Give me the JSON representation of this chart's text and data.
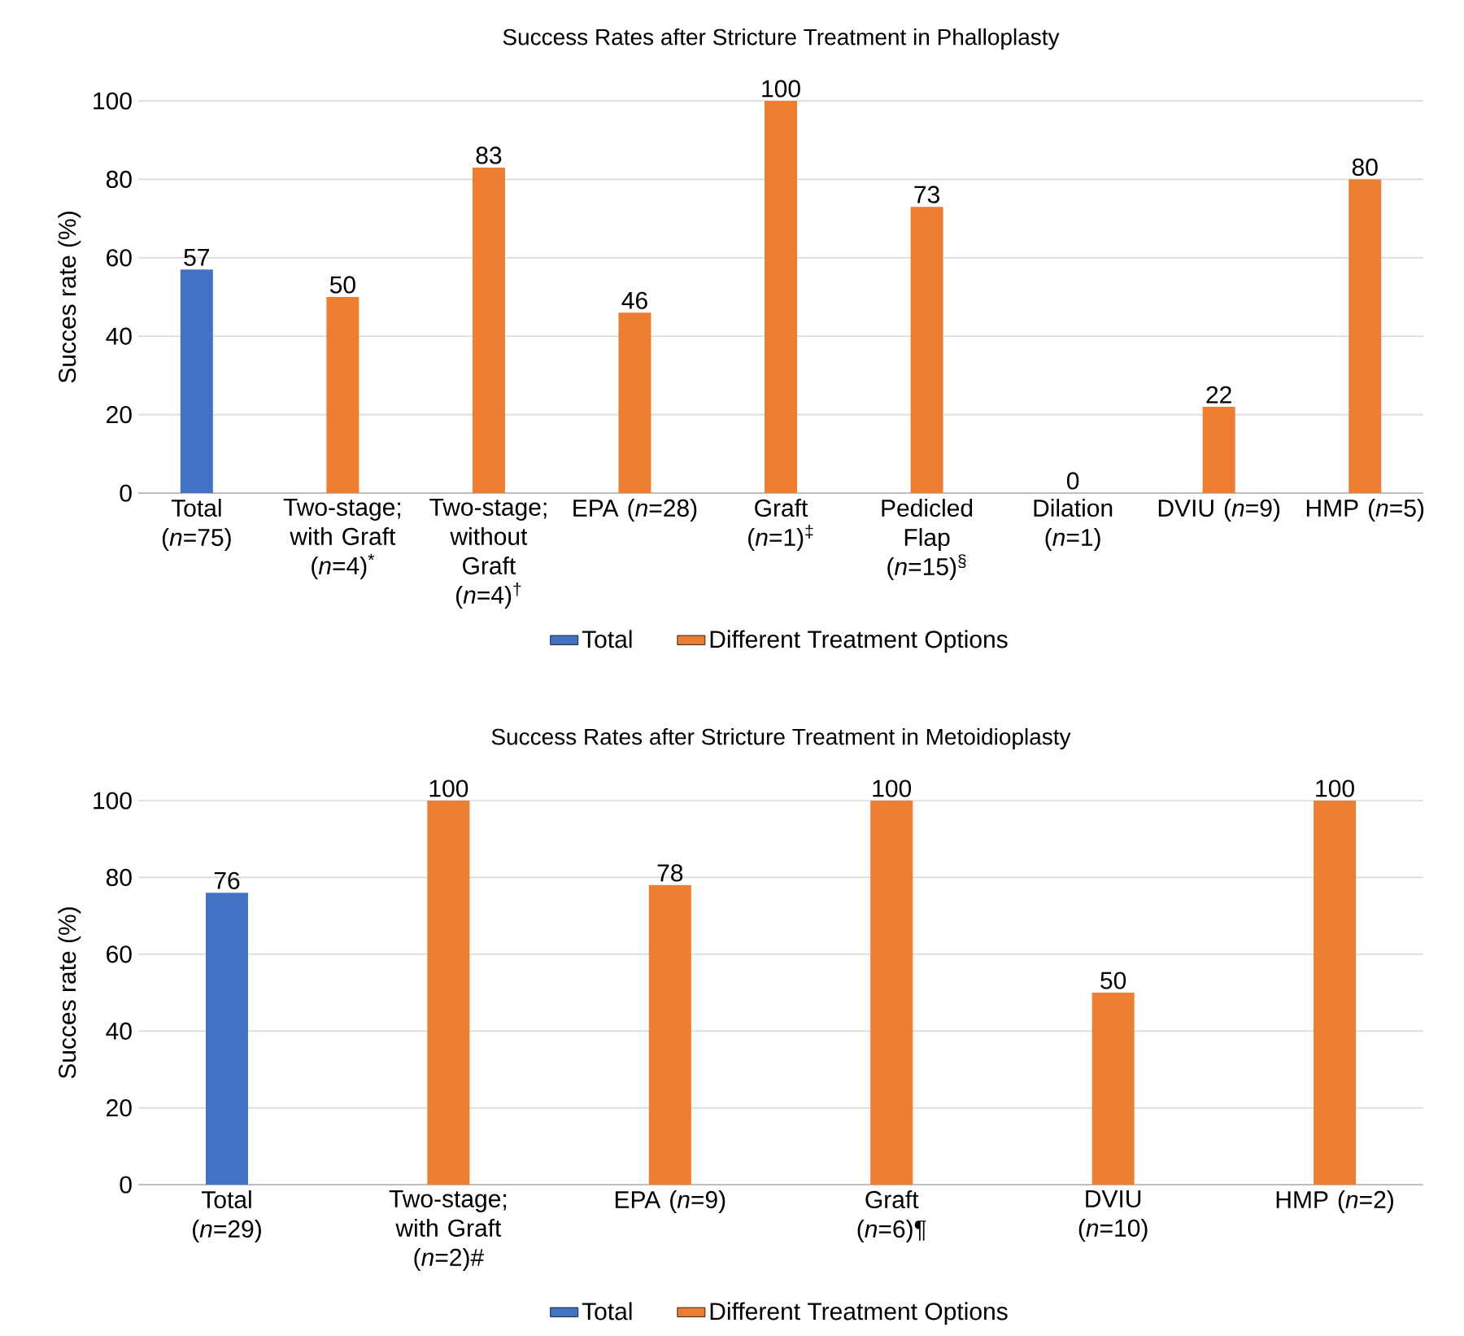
{
  "chart_data": [
    {
      "type": "bar",
      "title": "Success Rates after Stricture Treatment in Phalloplasty",
      "ylabel": "Succes rate (%)",
      "categories": [
        "Total (*n*=75)",
        "Two-stage; with Graft (*n*=4)$^{*}$",
        "Two-stage; without Graft (*n*=4)$^{†}$",
        "EPA (*n*=28)",
        "Graft (*n*=1)$^{‡}$",
        "Pedicled Flap (*n*=15)$^{§}$",
        "Dilation (*n*=1)",
        "DVIU (*n*=9)",
        "HMP (*n*=5)"
      ],
      "series": [
        {
          "name": "Total",
          "color": "#4472c4",
          "values": [
            57,
            null,
            null,
            null,
            null,
            null,
            null,
            null,
            null
          ]
        },
        {
          "name": "Different Treatment Options",
          "color": "#ed7d31",
          "values": [
            null,
            50,
            83,
            46,
            100,
            73,
            0,
            22,
            80
          ]
        }
      ],
      "ylim": [
        0,
        100
      ],
      "yticks": [
        0,
        20,
        40,
        60,
        80,
        100
      ],
      "grid": "y",
      "legend": "bottom",
      "data_labels": true
    },
    {
      "type": "bar",
      "title": "Success Rates after Stricture Treatment in Metoidioplasty",
      "ylabel": "Succes rate (%)",
      "categories": [
        "Total (*n*=29)",
        "Two-stage; with Graft (*n*=2)#",
        "EPA (*n*=9)",
        "Graft (*n*=6)¶",
        "DVIU (*n*=10)",
        "HMP (*n*=2)"
      ],
      "series": [
        {
          "name": "Total",
          "color": "#4472c4",
          "values": [
            76,
            null,
            null,
            null,
            null,
            null
          ]
        },
        {
          "name": "Different Treatment Options",
          "color": "#ed7d31",
          "values": [
            null,
            100,
            78,
            100,
            50,
            100
          ]
        }
      ],
      "ylim": [
        0,
        100
      ],
      "yticks": [
        0,
        20,
        40,
        60,
        80,
        100
      ],
      "grid": "y",
      "legend": "bottom",
      "data_labels": true
    }
  ]
}
